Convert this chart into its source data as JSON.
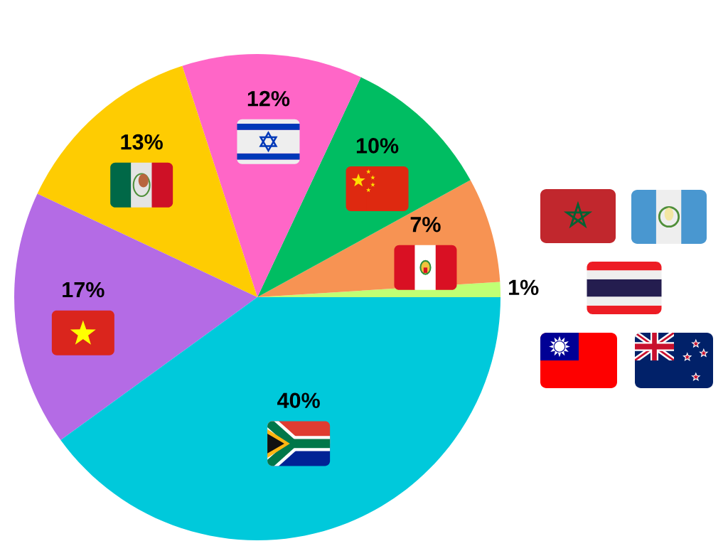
{
  "chart_data": {
    "type": "pie",
    "categories": [
      null,
      null,
      null,
      null,
      null,
      null,
      null
    ],
    "values": [
      1,
      7,
      10,
      12,
      13,
      17,
      40
    ],
    "colors": [
      "#c0ff74",
      "#f79353",
      "#00bd62",
      "#ff66c7",
      "#fecc02",
      "#b46be5",
      "#00c9db"
    ],
    "value_labels": [
      "1%",
      "7%",
      "10%",
      "12%",
      "13%",
      "17%",
      "40%"
    ]
  }
}
